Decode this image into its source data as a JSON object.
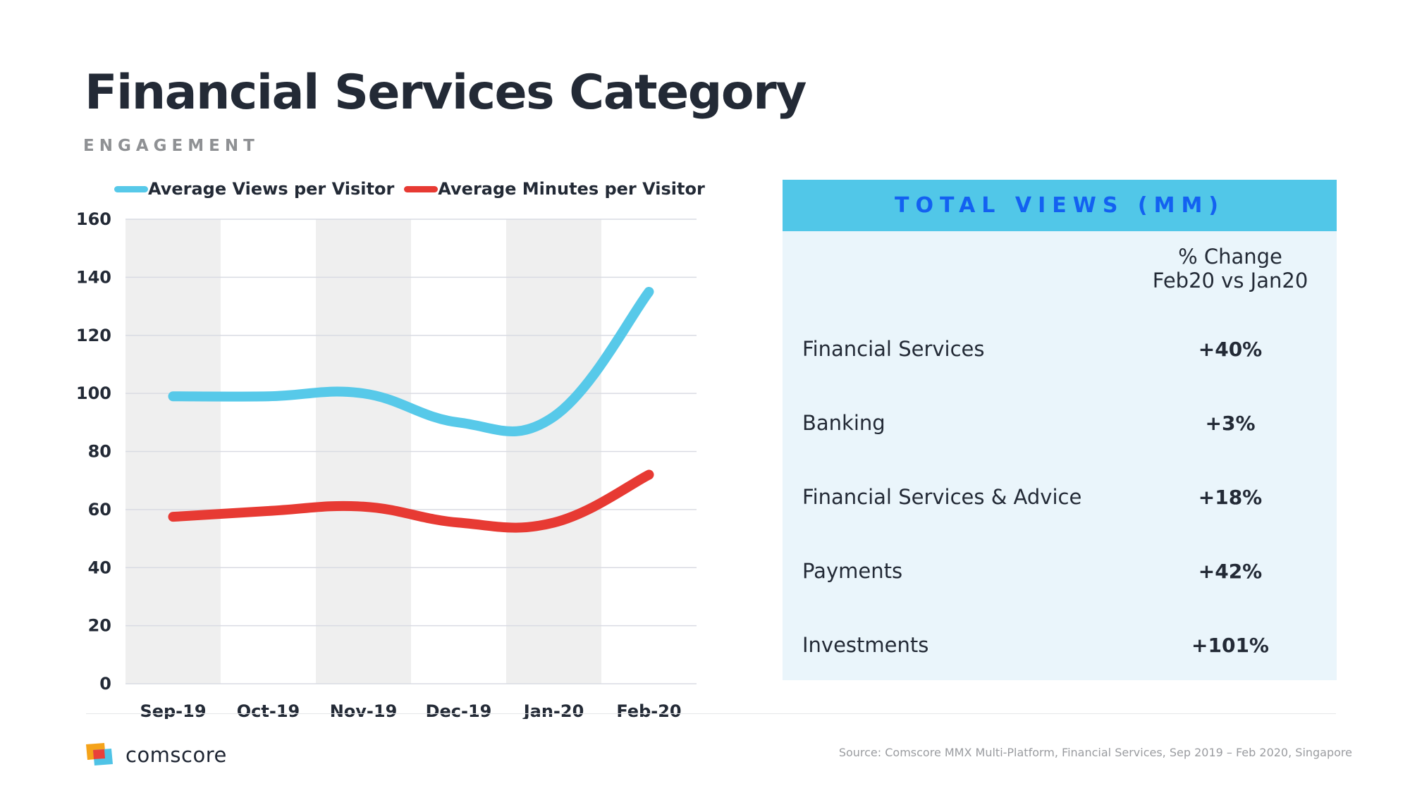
{
  "title": "Financial Services Category",
  "subtitle": "ENGAGEMENT",
  "colors": {
    "views": "#57c9e9",
    "minutes": "#e73a33",
    "panel_header": "#51c7e8",
    "panel_header_text": "#1361f1",
    "panel_bg": "#eaf5fb",
    "band": "#efefef"
  },
  "chart_data": {
    "type": "line",
    "categories": [
      "Sep-19",
      "Oct-19",
      "Nov-19",
      "Dec-19",
      "Jan-20",
      "Feb-20"
    ],
    "series": [
      {
        "name": "Average Views per Visitor",
        "values": [
          99,
          99,
          100,
          90,
          92,
          135
        ]
      },
      {
        "name": "Average Minutes per Visitor",
        "values": [
          57.5,
          59.5,
          61,
          55.5,
          55.5,
          72
        ]
      }
    ],
    "ylim": [
      0,
      160
    ],
    "yticks": [
      0,
      20,
      40,
      60,
      80,
      100,
      120,
      140,
      160
    ],
    "grid": true,
    "legend": "top",
    "alternating_bands": true,
    "smooth": true
  },
  "table": {
    "header": "TOTAL VIEWS (MM)",
    "column_header_line1": "% Change",
    "column_header_line2": "Feb20 vs Jan20",
    "rows": [
      {
        "name": "Financial Services",
        "value": "+40%"
      },
      {
        "name": "Banking",
        "value": "+3%"
      },
      {
        "name": "Financial Services & Advice",
        "value": "+18%"
      },
      {
        "name": "Payments",
        "value": "+42%"
      },
      {
        "name": "Investments",
        "value": "+101%"
      }
    ]
  },
  "footer": {
    "logo_text": "comscore",
    "source": "Source: Comscore MMX Multi-Platform, Financial Services, Sep 2019 – Feb 2020, Singapore"
  }
}
